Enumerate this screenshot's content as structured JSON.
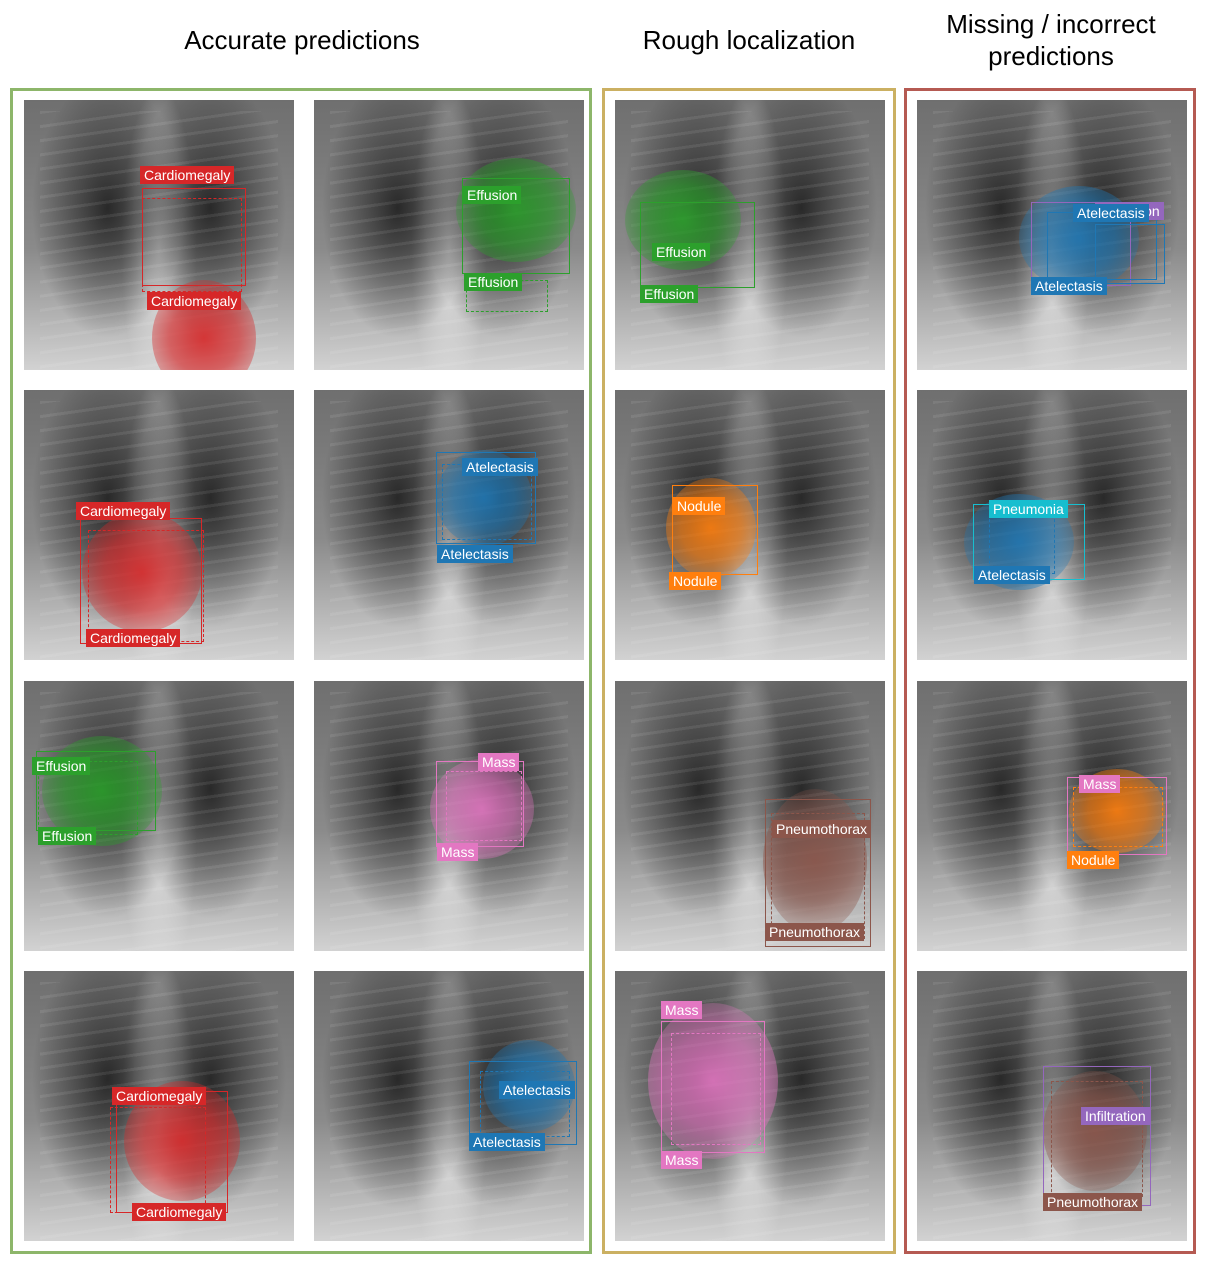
{
  "headings": {
    "accurate": "Accurate predictions",
    "rough": "Rough localization",
    "missing": "Missing / incorrect predictions"
  },
  "colors": {
    "accurate_frame": "#8db66a",
    "rough_frame": "#cbb062",
    "missing_frame": "#b55a52",
    "cardiomegaly": "#d62728",
    "effusion": "#2ca02c",
    "atelectasis": "#1f77b4",
    "mass": "#e377c2",
    "nodule": "#ff7f0e",
    "pneumothorax": "#8c564b",
    "pneumonia": "#17becf",
    "infiltration": "#9467bd"
  },
  "images": [
    {
      "group": "accurate",
      "labels": [
        "Cardiomegaly",
        "Cardiomegaly"
      ]
    },
    {
      "group": "accurate",
      "labels": [
        "Effusion",
        "Effusion"
      ]
    },
    {
      "group": "rough",
      "labels": [
        "Effusion",
        "Effusion"
      ]
    },
    {
      "group": "missing",
      "labels": [
        "Infiltration",
        "Atelectasis",
        "Atelectasis"
      ]
    },
    {
      "group": "accurate",
      "labels": [
        "Cardiomegaly",
        "Cardiomegaly"
      ]
    },
    {
      "group": "accurate",
      "labels": [
        "Atelectasis",
        "Atelectasis"
      ]
    },
    {
      "group": "rough",
      "labels": [
        "Nodule",
        "Nodule"
      ]
    },
    {
      "group": "missing",
      "labels": [
        "Pneumonia",
        "Atelectasis"
      ]
    },
    {
      "group": "accurate",
      "labels": [
        "Effusion",
        "Effusion"
      ]
    },
    {
      "group": "accurate",
      "labels": [
        "Mass",
        "Mass"
      ]
    },
    {
      "group": "rough",
      "labels": [
        "Pneumothorax",
        "Pneumothorax"
      ]
    },
    {
      "group": "missing",
      "labels": [
        "Mass",
        "Nodule"
      ]
    },
    {
      "group": "accurate",
      "labels": [
        "Cardiomegaly",
        "Cardiomegaly"
      ]
    },
    {
      "group": "accurate",
      "labels": [
        "Atelectasis",
        "Atelectasis"
      ]
    },
    {
      "group": "rough",
      "labels": [
        "Mass",
        "Mass"
      ]
    },
    {
      "group": "missing",
      "labels": [
        "Infiltration",
        "Pneumothorax"
      ]
    }
  ]
}
